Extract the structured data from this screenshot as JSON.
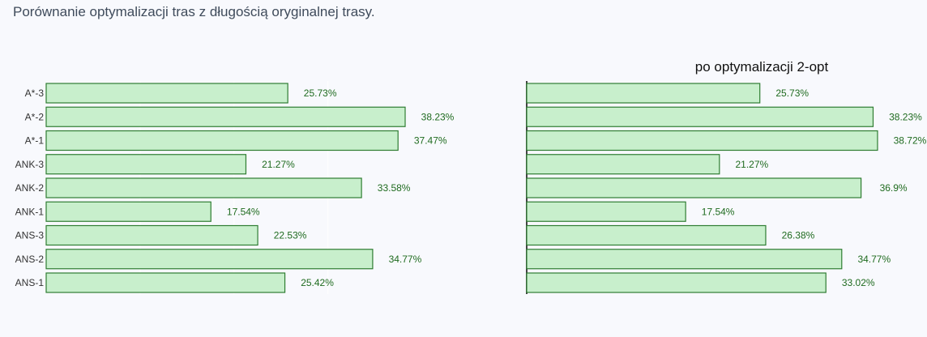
{
  "title": "Porównanie optymalizacji tras z długością oryginalnej trasy.",
  "colors": {
    "background": "#f8f9fd",
    "bar_fill": "#c8efcc",
    "bar_stroke": "#2f7d32",
    "label_text": "#1f6b1f",
    "grid": "#ffffff",
    "axis": "#444444",
    "title_text": "#3f4b5b",
    "tick_text": "#333333"
  },
  "chart_data": [
    {
      "type": "bar",
      "orientation": "horizontal",
      "title": "",
      "categories": [
        "A*-3",
        "A*-2",
        "A*-1",
        "ANK-3",
        "ANK-2",
        "ANK-1",
        "ANS-3",
        "ANS-2",
        "ANS-1"
      ],
      "values": [
        25.73,
        38.23,
        37.47,
        21.27,
        33.58,
        17.54,
        22.53,
        34.77,
        25.42
      ],
      "labels": [
        "25.73%",
        "38.23%",
        "37.47%",
        "21.27%",
        "33.58%",
        "17.54%",
        "22.53%",
        "34.77%",
        "25.42%"
      ],
      "xlim": [
        0,
        46.6
      ],
      "grid": true,
      "show_category_labels": true
    },
    {
      "type": "bar",
      "orientation": "horizontal",
      "title": "po optymalizacji 2-opt",
      "categories": [
        "A*-3",
        "A*-2",
        "A*-1",
        "ANK-3",
        "ANK-2",
        "ANK-1",
        "ANS-3",
        "ANS-2",
        "ANS-1"
      ],
      "values": [
        25.73,
        38.23,
        38.72,
        21.27,
        36.9,
        17.54,
        26.38,
        34.77,
        33.02
      ],
      "labels": [
        "25.73%",
        "38.23%",
        "38.72%",
        "21.27%",
        "36.9%",
        "17.54%",
        "26.38%",
        "34.77%",
        "33.02%"
      ],
      "xlim": [
        0,
        44
      ],
      "grid": false,
      "show_category_labels": false
    }
  ]
}
